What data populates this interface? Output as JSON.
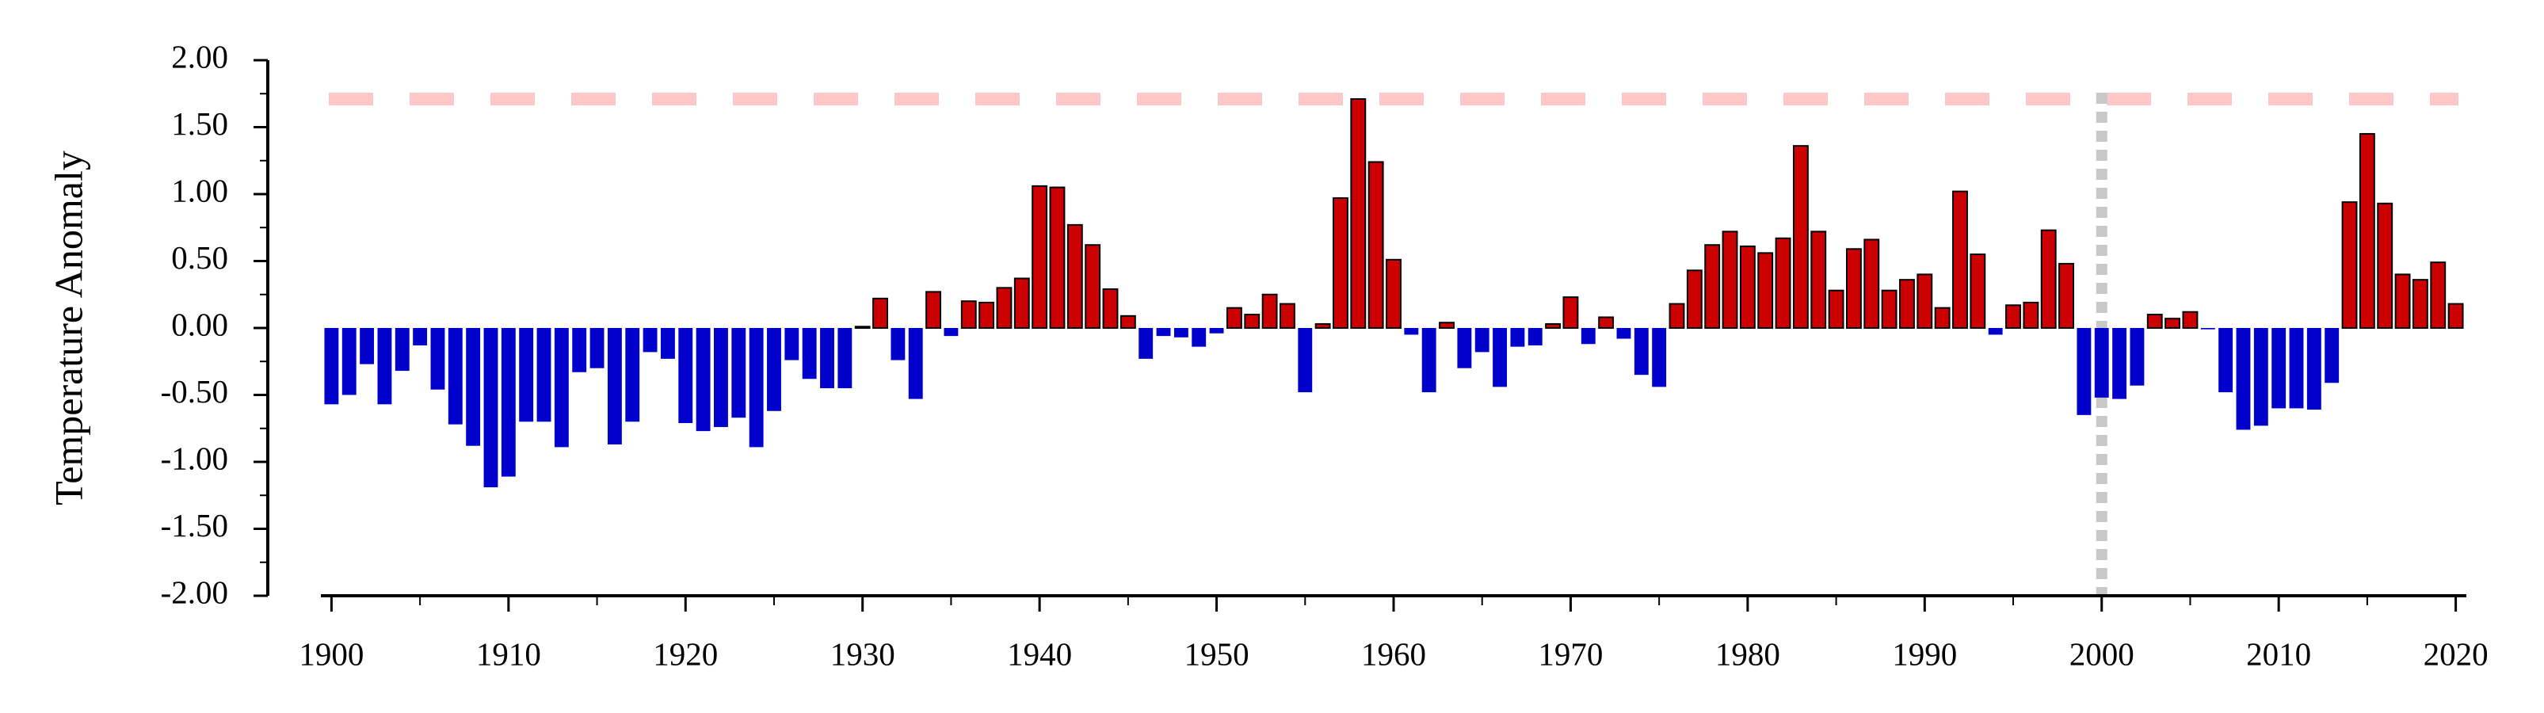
{
  "chart_data": {
    "type": "bar",
    "ylabel": "Temperature Anomaly",
    "x": [
      1900,
      1901,
      1902,
      1903,
      1904,
      1905,
      1906,
      1907,
      1908,
      1909,
      1910,
      1911,
      1912,
      1913,
      1914,
      1915,
      1916,
      1917,
      1918,
      1919,
      1920,
      1921,
      1922,
      1923,
      1924,
      1925,
      1926,
      1927,
      1928,
      1929,
      1930,
      1931,
      1932,
      1933,
      1934,
      1935,
      1936,
      1937,
      1938,
      1939,
      1940,
      1941,
      1942,
      1943,
      1944,
      1945,
      1946,
      1947,
      1948,
      1949,
      1950,
      1951,
      1952,
      1953,
      1954,
      1955,
      1956,
      1957,
      1958,
      1959,
      1960,
      1961,
      1962,
      1963,
      1964,
      1965,
      1966,
      1967,
      1968,
      1969,
      1970,
      1971,
      1972,
      1973,
      1974,
      1975,
      1976,
      1977,
      1978,
      1979,
      1980,
      1981,
      1982,
      1983,
      1984,
      1985,
      1986,
      1987,
      1988,
      1989,
      1990,
      1991,
      1992,
      1993,
      1994,
      1995,
      1996,
      1997,
      1998,
      1999,
      2000,
      2001,
      2002,
      2003,
      2004,
      2005,
      2006,
      2007,
      2008,
      2009,
      2010,
      2011,
      2012,
      2013,
      2014,
      2015,
      2016,
      2017,
      2018,
      2019,
      2020
    ],
    "values": [
      -0.57,
      -0.5,
      -0.27,
      -0.57,
      -0.32,
      -0.13,
      -0.46,
      -0.72,
      -0.88,
      -1.19,
      -1.11,
      -0.7,
      -0.7,
      -0.89,
      -0.33,
      -0.3,
      -0.87,
      -0.7,
      -0.18,
      -0.23,
      -0.71,
      -0.77,
      -0.74,
      -0.67,
      -0.89,
      -0.62,
      -0.24,
      -0.38,
      -0.45,
      -0.45,
      0.01,
      0.22,
      -0.24,
      -0.53,
      0.27,
      -0.06,
      0.2,
      0.19,
      0.3,
      0.37,
      1.06,
      1.05,
      0.77,
      0.62,
      0.29,
      0.09,
      -0.23,
      -0.06,
      -0.07,
      -0.14,
      -0.04,
      0.15,
      0.1,
      0.25,
      0.18,
      -0.48,
      0.03,
      0.97,
      1.71,
      1.24,
      0.51,
      -0.05,
      -0.48,
      0.04,
      -0.3,
      -0.18,
      -0.44,
      -0.14,
      -0.13,
      0.03,
      0.23,
      -0.12,
      0.08,
      -0.08,
      -0.35,
      -0.44,
      0.18,
      0.43,
      0.62,
      0.72,
      0.61,
      0.56,
      0.67,
      1.36,
      0.72,
      0.28,
      0.59,
      0.66,
      0.28,
      0.36,
      0.4,
      0.15,
      1.02,
      0.55,
      -0.05,
      0.17,
      0.19,
      0.73,
      0.48,
      -0.65,
      -0.52,
      -0.53,
      -0.43,
      0.1,
      0.07,
      0.12,
      -0.01,
      -0.48,
      -0.76,
      -0.73,
      -0.6,
      -0.6,
      -0.61,
      -0.41,
      0.94,
      1.45,
      0.93,
      0.4,
      0.36,
      0.49,
      0.18
    ],
    "pos_color": "#cc0000",
    "neg_color": "#0000cc",
    "xlim": [
      1899.4,
      2020.6
    ],
    "xticks": [
      1900,
      1910,
      1920,
      1930,
      1940,
      1950,
      1960,
      1970,
      1980,
      1990,
      2000,
      2010,
      2020
    ],
    "ylim": [
      -2,
      2
    ],
    "yticks": [
      {
        "value": -2,
        "label": "-2.00"
      },
      {
        "value": -1.5,
        "label": "-1.50"
      },
      {
        "value": -1,
        "label": "-1.00"
      },
      {
        "value": -0.5,
        "label": "-0.50"
      },
      {
        "value": 0,
        "label": "0.00"
      },
      {
        "value": 0.5,
        "label": "0.50"
      },
      {
        "value": 1,
        "label": "1.00"
      },
      {
        "value": 1.5,
        "label": "1.50"
      },
      {
        "value": 2,
        "label": "2.00"
      }
    ],
    "hline": 1.71,
    "hline_color": "#ffc8c8",
    "vline": 2000,
    "vline_color": "#c8c8c8"
  }
}
